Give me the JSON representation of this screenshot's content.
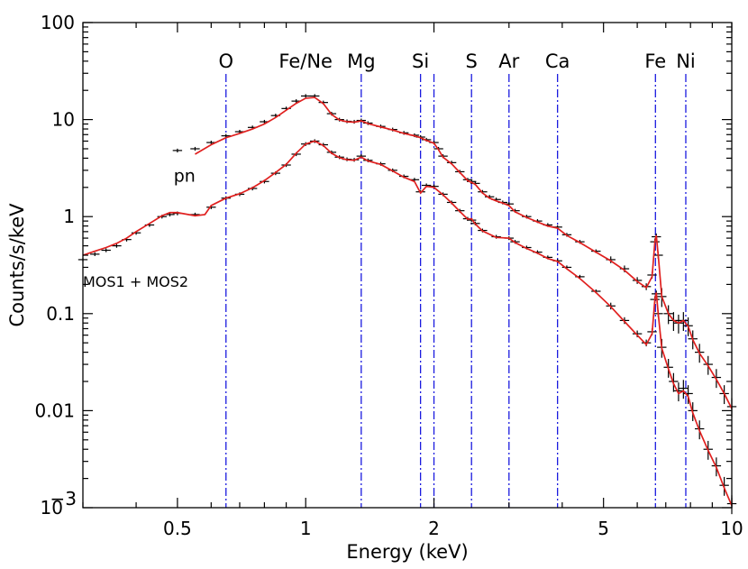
{
  "chart_data": {
    "type": "line",
    "x_scale": "log",
    "y_scale": "log",
    "xlim": [
      0.3,
      10
    ],
    "ylim": [
      0.001,
      100
    ],
    "xlabel": "Energy (keV)",
    "ylabel": "Counts/s/keV",
    "x_ticks": [
      {
        "value": 0.5,
        "label": "0.5"
      },
      {
        "value": 1,
        "label": "1"
      },
      {
        "value": 2,
        "label": "2"
      },
      {
        "value": 5,
        "label": "5"
      },
      {
        "value": 10,
        "label": "10"
      }
    ],
    "y_ticks": [
      {
        "value": 100,
        "label": "100"
      },
      {
        "value": 10,
        "label": "10"
      },
      {
        "value": 1,
        "label": "1"
      },
      {
        "value": 0.1,
        "label": "0.1"
      },
      {
        "value": 0.01,
        "label": "0.01"
      },
      {
        "value": 0.001,
        "label": "10",
        "sup": "−3"
      }
    ],
    "emission_lines": [
      {
        "label": "O",
        "energy": 0.65
      },
      {
        "label": "Fe/Ne",
        "energy": 1.0,
        "no_line": true
      },
      {
        "label": "Mg",
        "energy": 1.35
      },
      {
        "label": "Si",
        "energy": 1.86
      },
      {
        "label": "",
        "energy": 2.0
      },
      {
        "label": "S",
        "energy": 2.45
      },
      {
        "label": "Ar",
        "energy": 3.0
      },
      {
        "label": "Ca",
        "energy": 3.9
      },
      {
        "label": "Fe",
        "energy": 6.62
      },
      {
        "label": "Ni",
        "energy": 7.8
      }
    ],
    "series": [
      {
        "name": "pn",
        "label_at": [
          0.49,
          2.3
        ],
        "data": [
          [
            0.5,
            4.8
          ],
          [
            0.55,
            5.0
          ],
          [
            0.6,
            5.8
          ],
          [
            0.65,
            6.8
          ],
          [
            0.7,
            7.5
          ],
          [
            0.75,
            8.3
          ],
          [
            0.8,
            9.5
          ],
          [
            0.85,
            11.0
          ],
          [
            0.9,
            13.0
          ],
          [
            0.95,
            15.5
          ],
          [
            1.0,
            17.5
          ],
          [
            1.05,
            17.5
          ],
          [
            1.1,
            15.0
          ],
          [
            1.15,
            11.5
          ],
          [
            1.2,
            10.0
          ],
          [
            1.25,
            9.6
          ],
          [
            1.3,
            9.5
          ],
          [
            1.35,
            9.8
          ],
          [
            1.4,
            9.2
          ],
          [
            1.5,
            8.5
          ],
          [
            1.6,
            7.9
          ],
          [
            1.7,
            7.3
          ],
          [
            1.8,
            6.9
          ],
          [
            1.86,
            6.6
          ],
          [
            1.92,
            6.2
          ],
          [
            2.0,
            5.8
          ],
          [
            2.05,
            5.0
          ],
          [
            2.1,
            4.2
          ],
          [
            2.2,
            3.6
          ],
          [
            2.3,
            2.9
          ],
          [
            2.4,
            2.4
          ],
          [
            2.45,
            2.3
          ],
          [
            2.5,
            2.2
          ],
          [
            2.6,
            1.8
          ],
          [
            2.7,
            1.6
          ],
          [
            2.8,
            1.5
          ],
          [
            2.9,
            1.4
          ],
          [
            3.0,
            1.35
          ],
          [
            3.1,
            1.15
          ],
          [
            3.3,
            1.0
          ],
          [
            3.5,
            0.9
          ],
          [
            3.7,
            0.82
          ],
          [
            3.9,
            0.78
          ],
          [
            4.1,
            0.65
          ],
          [
            4.4,
            0.55
          ],
          [
            4.8,
            0.44
          ],
          [
            5.2,
            0.36
          ],
          [
            5.6,
            0.29
          ],
          [
            6.0,
            0.22
          ],
          [
            6.3,
            0.19
          ],
          [
            6.5,
            0.25
          ],
          [
            6.6,
            0.55
          ],
          [
            6.65,
            0.62
          ],
          [
            6.72,
            0.4
          ],
          [
            6.85,
            0.15
          ],
          [
            7.1,
            0.1
          ],
          [
            7.3,
            0.085
          ],
          [
            7.5,
            0.08
          ],
          [
            7.7,
            0.085
          ],
          [
            7.9,
            0.075
          ],
          [
            8.1,
            0.055
          ],
          [
            8.4,
            0.04
          ],
          [
            8.8,
            0.03
          ],
          [
            9.2,
            0.022
          ],
          [
            9.6,
            0.015
          ],
          [
            10.0,
            0.011
          ]
        ],
        "model": [
          [
            0.55,
            4.4
          ],
          [
            0.6,
            5.5
          ],
          [
            0.65,
            6.5
          ],
          [
            0.7,
            7.2
          ],
          [
            0.75,
            8.0
          ],
          [
            0.8,
            9.0
          ],
          [
            0.85,
            10.5
          ],
          [
            0.9,
            12.5
          ],
          [
            0.95,
            14.7
          ],
          [
            1.0,
            16.6
          ],
          [
            1.05,
            16.9
          ],
          [
            1.1,
            14.6
          ],
          [
            1.15,
            11.3
          ],
          [
            1.2,
            9.9
          ],
          [
            1.25,
            9.5
          ],
          [
            1.3,
            9.4
          ],
          [
            1.35,
            9.7
          ],
          [
            1.4,
            9.1
          ],
          [
            1.5,
            8.4
          ],
          [
            1.6,
            7.8
          ],
          [
            1.7,
            7.2
          ],
          [
            1.8,
            6.8
          ],
          [
            1.86,
            6.5
          ],
          [
            1.92,
            6.1
          ],
          [
            2.0,
            5.7
          ],
          [
            2.05,
            4.9
          ],
          [
            2.1,
            4.1
          ],
          [
            2.2,
            3.5
          ],
          [
            2.3,
            2.85
          ],
          [
            2.4,
            2.35
          ],
          [
            2.45,
            2.25
          ],
          [
            2.5,
            2.15
          ],
          [
            2.6,
            1.75
          ],
          [
            2.7,
            1.55
          ],
          [
            2.8,
            1.45
          ],
          [
            2.9,
            1.38
          ],
          [
            3.0,
            1.3
          ],
          [
            3.1,
            1.12
          ],
          [
            3.3,
            0.98
          ],
          [
            3.5,
            0.88
          ],
          [
            3.7,
            0.8
          ],
          [
            3.9,
            0.76
          ],
          [
            4.1,
            0.64
          ],
          [
            4.4,
            0.54
          ],
          [
            4.8,
            0.43
          ],
          [
            5.2,
            0.35
          ],
          [
            5.6,
            0.28
          ],
          [
            6.0,
            0.215
          ],
          [
            6.3,
            0.185
          ],
          [
            6.5,
            0.24
          ],
          [
            6.6,
            0.55
          ],
          [
            6.65,
            0.64
          ],
          [
            6.72,
            0.4
          ],
          [
            6.85,
            0.15
          ],
          [
            7.1,
            0.1
          ],
          [
            7.3,
            0.085
          ],
          [
            7.5,
            0.08
          ],
          [
            7.7,
            0.085
          ],
          [
            7.9,
            0.074
          ],
          [
            8.1,
            0.054
          ],
          [
            8.4,
            0.039
          ],
          [
            8.8,
            0.029
          ],
          [
            9.2,
            0.021
          ],
          [
            9.6,
            0.015
          ],
          [
            10.0,
            0.0105
          ]
        ]
      },
      {
        "name": "MOS1 + MOS2",
        "label_at": [
          0.3,
          0.19
        ],
        "data": [
          [
            0.3,
            0.36
          ],
          [
            0.32,
            0.41
          ],
          [
            0.34,
            0.45
          ],
          [
            0.36,
            0.5
          ],
          [
            0.38,
            0.58
          ],
          [
            0.4,
            0.68
          ],
          [
            0.43,
            0.82
          ],
          [
            0.46,
            1.0
          ],
          [
            0.48,
            1.05
          ],
          [
            0.5,
            1.08
          ],
          [
            0.55,
            1.05
          ],
          [
            0.6,
            1.25
          ],
          [
            0.65,
            1.55
          ],
          [
            0.7,
            1.7
          ],
          [
            0.75,
            1.95
          ],
          [
            0.8,
            2.3
          ],
          [
            0.85,
            2.8
          ],
          [
            0.9,
            3.4
          ],
          [
            0.95,
            4.4
          ],
          [
            1.0,
            5.6
          ],
          [
            1.05,
            6.0
          ],
          [
            1.1,
            5.5
          ],
          [
            1.15,
            4.6
          ],
          [
            1.2,
            4.1
          ],
          [
            1.25,
            3.9
          ],
          [
            1.3,
            3.85
          ],
          [
            1.35,
            4.2
          ],
          [
            1.4,
            3.8
          ],
          [
            1.5,
            3.5
          ],
          [
            1.6,
            3.0
          ],
          [
            1.7,
            2.6
          ],
          [
            1.8,
            2.4
          ],
          [
            1.86,
            1.8
          ],
          [
            1.92,
            2.1
          ],
          [
            2.0,
            2.05
          ],
          [
            2.1,
            1.7
          ],
          [
            2.2,
            1.4
          ],
          [
            2.3,
            1.15
          ],
          [
            2.4,
            0.95
          ],
          [
            2.45,
            0.92
          ],
          [
            2.5,
            0.85
          ],
          [
            2.6,
            0.72
          ],
          [
            2.8,
            0.62
          ],
          [
            3.0,
            0.6
          ],
          [
            3.1,
            0.55
          ],
          [
            3.3,
            0.48
          ],
          [
            3.5,
            0.43
          ],
          [
            3.7,
            0.38
          ],
          [
            3.9,
            0.35
          ],
          [
            4.1,
            0.3
          ],
          [
            4.4,
            0.24
          ],
          [
            4.8,
            0.17
          ],
          [
            5.2,
            0.12
          ],
          [
            5.6,
            0.085
          ],
          [
            6.0,
            0.062
          ],
          [
            6.3,
            0.05
          ],
          [
            6.5,
            0.065
          ],
          [
            6.6,
            0.14
          ],
          [
            6.65,
            0.16
          ],
          [
            6.72,
            0.1
          ],
          [
            6.85,
            0.045
          ],
          [
            7.1,
            0.028
          ],
          [
            7.3,
            0.02
          ],
          [
            7.5,
            0.016
          ],
          [
            7.7,
            0.017
          ],
          [
            7.9,
            0.015
          ],
          [
            8.1,
            0.01
          ],
          [
            8.4,
            0.0065
          ],
          [
            8.8,
            0.004
          ],
          [
            9.2,
            0.0027
          ],
          [
            9.6,
            0.0017
          ],
          [
            10.0,
            0.0011
          ]
        ],
        "model": [
          [
            0.3,
            0.4
          ],
          [
            0.32,
            0.44
          ],
          [
            0.34,
            0.48
          ],
          [
            0.36,
            0.53
          ],
          [
            0.38,
            0.6
          ],
          [
            0.4,
            0.7
          ],
          [
            0.43,
            0.85
          ],
          [
            0.46,
            1.02
          ],
          [
            0.48,
            1.1
          ],
          [
            0.5,
            1.1
          ],
          [
            0.55,
            1.02
          ],
          [
            0.58,
            1.05
          ],
          [
            0.6,
            1.3
          ],
          [
            0.65,
            1.55
          ],
          [
            0.7,
            1.72
          ],
          [
            0.75,
            1.98
          ],
          [
            0.8,
            2.35
          ],
          [
            0.85,
            2.85
          ],
          [
            0.9,
            3.45
          ],
          [
            0.95,
            4.5
          ],
          [
            1.0,
            5.6
          ],
          [
            1.05,
            6.0
          ],
          [
            1.1,
            5.4
          ],
          [
            1.15,
            4.5
          ],
          [
            1.2,
            4.05
          ],
          [
            1.25,
            3.85
          ],
          [
            1.3,
            3.8
          ],
          [
            1.35,
            4.1
          ],
          [
            1.4,
            3.75
          ],
          [
            1.5,
            3.45
          ],
          [
            1.6,
            2.95
          ],
          [
            1.7,
            2.55
          ],
          [
            1.8,
            2.3
          ],
          [
            1.86,
            1.75
          ],
          [
            1.92,
            2.05
          ],
          [
            2.0,
            2.0
          ],
          [
            2.1,
            1.68
          ],
          [
            2.2,
            1.38
          ],
          [
            2.3,
            1.13
          ],
          [
            2.4,
            0.94
          ],
          [
            2.45,
            0.95
          ],
          [
            2.5,
            0.84
          ],
          [
            2.6,
            0.71
          ],
          [
            2.8,
            0.61
          ],
          [
            3.0,
            0.6
          ],
          [
            3.1,
            0.54
          ],
          [
            3.3,
            0.47
          ],
          [
            3.5,
            0.42
          ],
          [
            3.7,
            0.37
          ],
          [
            3.9,
            0.345
          ],
          [
            4.1,
            0.29
          ],
          [
            4.4,
            0.23
          ],
          [
            4.8,
            0.165
          ],
          [
            5.2,
            0.118
          ],
          [
            5.6,
            0.083
          ],
          [
            6.0,
            0.06
          ],
          [
            6.3,
            0.048
          ],
          [
            6.5,
            0.062
          ],
          [
            6.6,
            0.14
          ],
          [
            6.65,
            0.165
          ],
          [
            6.72,
            0.1
          ],
          [
            6.85,
            0.044
          ],
          [
            7.1,
            0.027
          ],
          [
            7.3,
            0.019
          ],
          [
            7.5,
            0.015
          ],
          [
            7.7,
            0.016
          ],
          [
            7.9,
            0.014
          ],
          [
            8.1,
            0.0095
          ],
          [
            8.4,
            0.0062
          ],
          [
            8.8,
            0.0039
          ],
          [
            9.2,
            0.0026
          ],
          [
            9.6,
            0.0016
          ],
          [
            10.0,
            0.00105
          ]
        ]
      }
    ],
    "colors": {
      "data": "#000000",
      "model": "#e0201f",
      "line_markers": "#1a1adf",
      "axes": "#000000"
    },
    "grid": false,
    "legend": "none"
  }
}
